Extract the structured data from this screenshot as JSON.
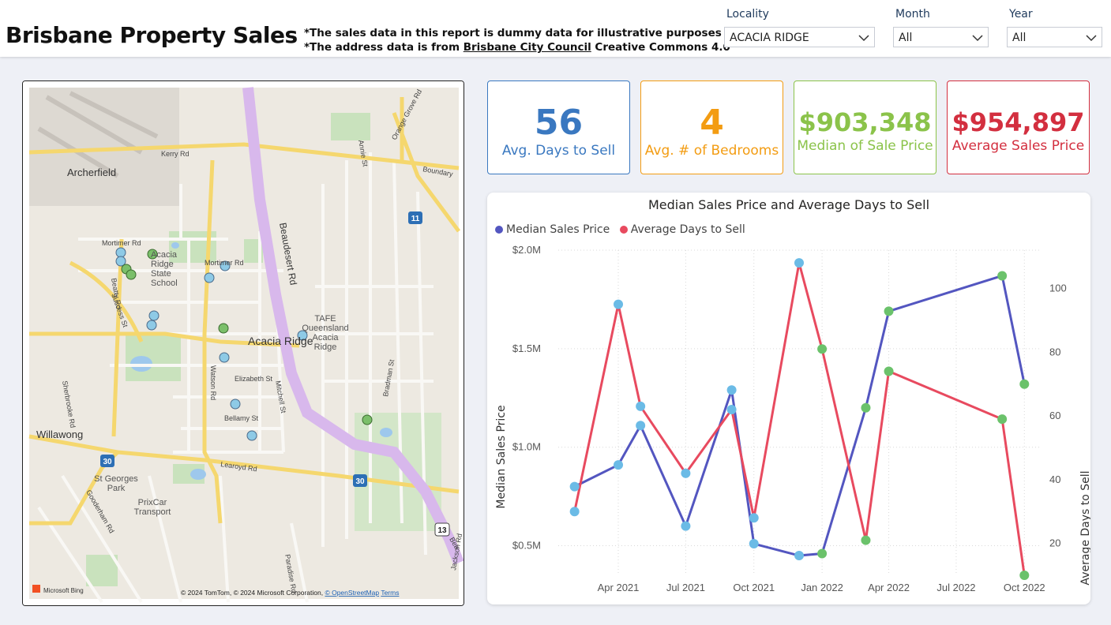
{
  "header": {
    "title": "Brisbane Property Sales",
    "disclaimer_line1": "*The sales data in this report is dummy data for illustrative purposes",
    "disclaimer_line2_prefix": "*The address data is from ",
    "disclaimer_link": "Brisbane City Council",
    "disclaimer_line2_suffix": " Creative Commons 4.0"
  },
  "filters": [
    {
      "label": "Locality",
      "value": "ACACIA RIDGE"
    },
    {
      "label": "Month",
      "value": "All"
    },
    {
      "label": "Year",
      "value": "All"
    }
  ],
  "map": {
    "labels": {
      "archerfield": "Archerfield",
      "school": [
        "Acacia",
        "Ridge",
        "State",
        "School"
      ],
      "tafe": [
        "TAFE",
        "Queensland",
        "Acacia",
        "Ridge"
      ],
      "acacia_ridge": "Acacia Ridge",
      "willawong": "Willawong",
      "st_georges": [
        "St Georges",
        "Park"
      ],
      "prixcar": [
        "PrixCar",
        "Transport"
      ],
      "kerry": "Kerry Rd",
      "mortimer": "Mortimer Rd",
      "mortimer2": "Mortimer Rd",
      "beaudesert": "Beaudesert Rd",
      "elizabeth": "Elizabeth St",
      "bellamy": "Bellamy St",
      "learoyd": "Learoyd Rd",
      "watson": "Watson Rd",
      "beatty": "Beatty Rd",
      "boundary": "Boundary",
      "orange_grove": "Orange Grove Rd",
      "sherbrooke": "Sherbrooke Rd",
      "gooderham": "Gooderham Rd",
      "paradise": "Paradise Rd",
      "bradman": "Bradman St",
      "mitchell": "Mitchell St",
      "jackson": "Jackson Rd",
      "success": "Success St",
      "annie": "Annie St",
      "beau_short": "Bea"
    },
    "shields": [
      "11",
      "30",
      "30",
      "13"
    ],
    "attribution": "© 2024 TomTom, © 2024 Microsoft Corporation, ",
    "attribution_link": "© OpenStreetMap",
    "terms": "Terms",
    "bing": "Microsoft Bing",
    "colors": {
      "blue_pin": "#8ecae6",
      "green_pin": "#7bbf6a"
    }
  },
  "kpis": [
    {
      "value": "56",
      "label": "Avg. Days to Sell",
      "color": "#3a78c0"
    },
    {
      "value": "4",
      "label": "Avg. # of Bedrooms",
      "color": "#f39c12"
    },
    {
      "value": "$903,348",
      "label": "Median of Sale Price",
      "color": "#8bc34a"
    },
    {
      "value": "$954,897",
      "label": "Average Sales Price",
      "color": "#d32f3f"
    }
  ],
  "chart_data": {
    "type": "line",
    "title": "Median Sales Price and Average Days to Sell",
    "legend": [
      {
        "name": "Median Sales Price",
        "color": "#5356c0"
      },
      {
        "name": "Average Days to Sell",
        "color": "#e84a5f"
      }
    ],
    "legend_position": "top-left",
    "xlabel": "",
    "ylabel_left": "Median Sales Price",
    "ylabel_right": "Average Days to Sell",
    "x_tick_labels": [
      "Apr 2021",
      "Jul 2021",
      "Oct 2021",
      "Jan 2022",
      "Apr 2022",
      "Jul 2022",
      "Oct 2022"
    ],
    "y_left_ticks": [
      "$0.5M",
      "$1.0M",
      "$1.5M",
      "$2.0M"
    ],
    "y_left_tick_values": [
      500000,
      1000000,
      1500000,
      2000000
    ],
    "y_right_ticks": [
      "20",
      "40",
      "60",
      "80",
      "100"
    ],
    "y_right_tick_values": [
      20,
      40,
      60,
      80,
      100
    ],
    "grid": true,
    "series": [
      {
        "name": "Median Sales Price",
        "axis": "left",
        "color": "#5356c0",
        "x": [
          "2021-02-01",
          "2021-04-01",
          "2021-05-01",
          "2021-07-01",
          "2021-09-01",
          "2021-10-01",
          "2021-12-01",
          "2022-01-01",
          "2022-03-01",
          "2022-04-01",
          "2022-09-01",
          "2022-10-01"
        ],
        "values": [
          800000,
          910000,
          1110000,
          600000,
          1290000,
          510000,
          450000,
          460000,
          1200000,
          1690000,
          1870000,
          1320000
        ],
        "point_colors": [
          "#6bbbe6",
          "#6bbbe6",
          "#6bbbe6",
          "#6bbbe6",
          "#6bbbe6",
          "#6bbbe6",
          "#6bbbe6",
          "#6bc26b",
          "#6bc26b",
          "#6bc26b",
          "#6bc26b",
          "#6bc26b"
        ]
      },
      {
        "name": "Average Days to Sell",
        "axis": "right",
        "color": "#e84a5f",
        "x": [
          "2021-02-01",
          "2021-04-01",
          "2021-05-01",
          "2021-07-01",
          "2021-09-01",
          "2021-10-01",
          "2021-12-01",
          "2022-01-01",
          "2022-03-01",
          "2022-04-01",
          "2022-09-01",
          "2022-10-01"
        ],
        "values": [
          30,
          95,
          63,
          42,
          62,
          28,
          108,
          81,
          21,
          74,
          59,
          10
        ],
        "point_colors": [
          "#6bbbe6",
          "#6bbbe6",
          "#6bbbe6",
          "#6bbbe6",
          "#6bbbe6",
          "#6bbbe6",
          "#6bbbe6",
          "#6bc26b",
          "#6bc26b",
          "#6bc26b",
          "#6bc26b",
          "#6bc26b"
        ]
      }
    ],
    "x_range": [
      "2021-01-10",
      "2022-10-22"
    ],
    "ylim_left": [
      350000,
      2000000
    ],
    "ylim_right": [
      10,
      112
    ]
  }
}
